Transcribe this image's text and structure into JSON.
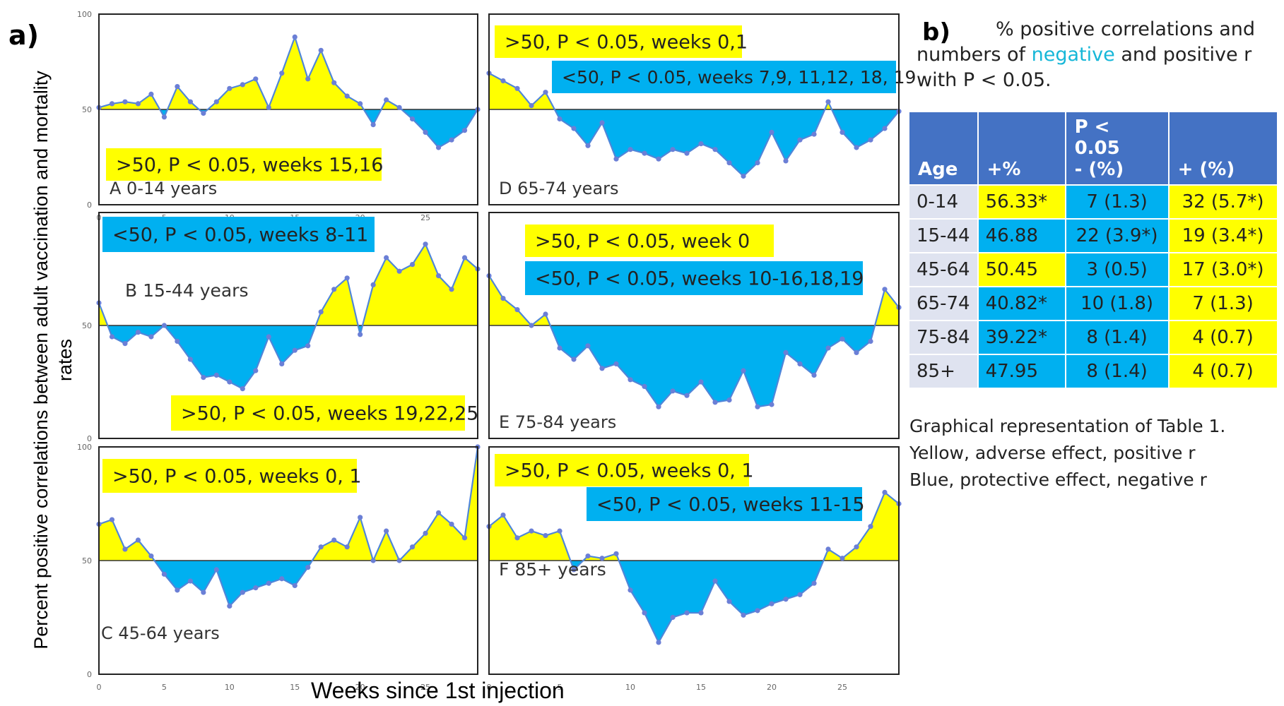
{
  "figure": {
    "label_a": "a)",
    "label_b": "b)",
    "ylabel": "Percent positive correlations between adult vaccination and mortality rates",
    "xlabel": "Weeks since 1st injection"
  },
  "colors": {
    "above": "#ffff00",
    "below": "#00b0f0",
    "line": "#4f86d9",
    "marker": "#6b7fd6"
  },
  "chart_data": [
    {
      "type": "area",
      "panel_label": "A 0-14 years",
      "xlim": [
        0,
        29
      ],
      "ylim": [
        0,
        100
      ],
      "reference": 50,
      "x_ticks": [
        "0",
        "5",
        "10",
        "15",
        "20",
        "25"
      ],
      "y_ticks": [
        "0",
        "50",
        "100"
      ],
      "x": [
        0,
        1,
        2,
        3,
        4,
        5,
        6,
        7,
        8,
        9,
        10,
        11,
        12,
        13,
        14,
        15,
        16,
        17,
        18,
        19,
        20,
        21,
        22,
        23,
        24,
        25,
        26,
        27,
        28,
        29
      ],
      "values": [
        51,
        53,
        54,
        53,
        58,
        46,
        62,
        54,
        48,
        54,
        61,
        63,
        66,
        51,
        69,
        88,
        66,
        81,
        64,
        57,
        53,
        42,
        55,
        51,
        45,
        38,
        30,
        34,
        39,
        50
      ],
      "annotations": [
        {
          "text": ">50, P < 0.05, weeks 15,16",
          "color": "#ffff00"
        }
      ]
    },
    {
      "type": "area",
      "panel_label": "B 15-44 years",
      "xlim": [
        0,
        29
      ],
      "ylim": [
        0,
        100
      ],
      "reference": 50,
      "x_ticks": [],
      "y_ticks": [
        "0",
        "50"
      ],
      "x": [
        0,
        1,
        2,
        3,
        4,
        5,
        6,
        7,
        8,
        9,
        10,
        11,
        12,
        13,
        14,
        15,
        16,
        17,
        18,
        19,
        20,
        21,
        22,
        23,
        24,
        25,
        26,
        27,
        28,
        29
      ],
      "values": [
        60,
        45,
        42,
        47,
        45,
        50,
        43,
        35,
        27,
        28,
        25,
        22,
        30,
        45,
        33,
        39,
        41,
        56,
        66,
        71,
        46,
        68,
        80,
        74,
        77,
        86,
        72,
        66,
        80,
        75
      ],
      "annotations": [
        {
          "text": "<50, P < 0.05, weeks 8-11",
          "color": "#00b0f0"
        },
        {
          "text": ">50, P < 0.05, weeks 19,22,25",
          "color": "#ffff00"
        }
      ]
    },
    {
      "type": "area",
      "panel_label": "C 45-64 years",
      "xlim": [
        0,
        29
      ],
      "ylim": [
        0,
        100
      ],
      "reference": 50,
      "x_ticks": [
        "0",
        "5",
        "10",
        "15",
        "20",
        "25"
      ],
      "y_ticks": [
        "0",
        "50",
        "100"
      ],
      "x": [
        0,
        1,
        2,
        3,
        4,
        5,
        6,
        7,
        8,
        9,
        10,
        11,
        12,
        13,
        14,
        15,
        16,
        17,
        18,
        19,
        20,
        21,
        22,
        23,
        24,
        25,
        26,
        27,
        28,
        29
      ],
      "values": [
        66,
        68,
        55,
        59,
        52,
        44,
        37,
        41,
        36,
        46,
        30,
        36,
        38,
        40,
        42,
        39,
        47,
        56,
        59,
        56,
        69,
        50,
        63,
        50,
        56,
        62,
        71,
        66,
        60,
        100
      ],
      "annotations": [
        {
          "text": ">50, P < 0.05, weeks 0, 1",
          "color": "#ffff00"
        }
      ]
    },
    {
      "type": "area",
      "panel_label": "D 65-74 years",
      "xlim": [
        0,
        29
      ],
      "ylim": [
        0,
        100
      ],
      "reference": 50,
      "x_ticks": [],
      "y_ticks": [],
      "x": [
        0,
        1,
        2,
        3,
        4,
        5,
        6,
        7,
        8,
        9,
        10,
        11,
        12,
        13,
        14,
        15,
        16,
        17,
        18,
        19,
        20,
        21,
        22,
        23,
        24,
        25,
        26,
        27,
        28,
        29
      ],
      "values": [
        69,
        65,
        61,
        52,
        59,
        45,
        40,
        31,
        43,
        24,
        29,
        27,
        24,
        29,
        27,
        32,
        29,
        22,
        15,
        22,
        38,
        23,
        34,
        37,
        54,
        38,
        30,
        34,
        40,
        49
      ],
      "annotations": [
        {
          "text": ">50, P < 0.05, weeks 0,1",
          "color": "#ffff00"
        },
        {
          "text": "<50, P < 0.05, weeks 7,9, 11,12, 18, 19",
          "color": "#00b0f0"
        }
      ]
    },
    {
      "type": "area",
      "panel_label": "E 75-84 years",
      "xlim": [
        0,
        29
      ],
      "ylim": [
        0,
        100
      ],
      "reference": 50,
      "x_ticks": [],
      "y_ticks": [],
      "x": [
        0,
        1,
        2,
        3,
        4,
        5,
        6,
        7,
        8,
        9,
        10,
        11,
        12,
        13,
        14,
        15,
        16,
        17,
        18,
        19,
        20,
        21,
        22,
        23,
        24,
        25,
        26,
        27,
        28,
        29
      ],
      "values": [
        72,
        62,
        57,
        50,
        55,
        40,
        35,
        41,
        31,
        33,
        26,
        23,
        14,
        21,
        19,
        25,
        16,
        17,
        30,
        14,
        15,
        38,
        33,
        28,
        40,
        44,
        38,
        43,
        66,
        58
      ],
      "annotations": [
        {
          "text": ">50, P < 0.05, week 0",
          "color": "#ffff00"
        },
        {
          "text": "<50, P < 0.05, weeks 10-16,18,19",
          "color": "#00b0f0"
        }
      ]
    },
    {
      "type": "area",
      "panel_label": "F 85+ years",
      "xlim": [
        0,
        29
      ],
      "ylim": [
        0,
        100
      ],
      "reference": 50,
      "x_ticks": [
        "0",
        "5",
        "10",
        "15",
        "20",
        "25"
      ],
      "y_ticks": [],
      "x": [
        0,
        1,
        2,
        3,
        4,
        5,
        6,
        7,
        8,
        9,
        10,
        11,
        12,
        13,
        14,
        15,
        16,
        17,
        18,
        19,
        20,
        21,
        22,
        23,
        24,
        25,
        26,
        27,
        28,
        29
      ],
      "values": [
        65,
        70,
        60,
        63,
        61,
        63,
        46,
        52,
        51,
        53,
        37,
        27,
        14,
        25,
        27,
        27,
        41,
        32,
        26,
        28,
        31,
        33,
        35,
        40,
        55,
        51,
        56,
        65,
        80,
        75
      ],
      "annotations": [
        {
          "text": ">50, P < 0.05, weeks 0, 1",
          "color": "#ffff00"
        },
        {
          "text": "<50, P < 0.05, weeks 11-15",
          "color": "#00b0f0"
        }
      ]
    }
  ],
  "table_b": {
    "title_line1": "% positive correlations and",
    "title_line2_pre": "numbers of ",
    "title_line2_neg": "negative",
    "title_line2_post": " and positive r",
    "title_line3": "with P < 0.05.",
    "headers": [
      "Age",
      "+%",
      "P < 0.05\n- (%)",
      "+ (%)"
    ],
    "rows": [
      {
        "age": "0-14",
        "pct": "56.33*",
        "neg": "7 (1.3)",
        "pos": "32 (5.7*)",
        "pct_color": "yellow",
        "neg_color": "blue",
        "pos_color": "yellow"
      },
      {
        "age": "15-44",
        "pct": "46.88",
        "neg": "22 (3.9*)",
        "pos": "19 (3.4*)",
        "pct_color": "blue",
        "neg_color": "blue",
        "pos_color": "yellow"
      },
      {
        "age": "45-64",
        "pct": "50.45",
        "neg": "3 (0.5)",
        "pos": "17 (3.0*)",
        "pct_color": "yellow",
        "neg_color": "blue",
        "pos_color": "yellow"
      },
      {
        "age": "65-74",
        "pct": "40.82*",
        "neg": "10 (1.8)",
        "pos": "7 (1.3)",
        "pct_color": "blue",
        "neg_color": "blue",
        "pos_color": "yellow"
      },
      {
        "age": "75-84",
        "pct": "39.22*",
        "neg": "8 (1.4)",
        "pos": "4 (0.7)",
        "pct_color": "blue",
        "neg_color": "blue",
        "pos_color": "yellow"
      },
      {
        "age": "85+",
        "pct": "47.95",
        "neg": "8 (1.4)",
        "pos": "4 (0.7)",
        "pct_color": "blue",
        "neg_color": "blue",
        "pos_color": "yellow"
      }
    ],
    "caption": [
      "Graphical representation of Table 1.",
      "Yellow, adverse effect, positive r",
      "Blue, protective effect, negative r"
    ]
  }
}
